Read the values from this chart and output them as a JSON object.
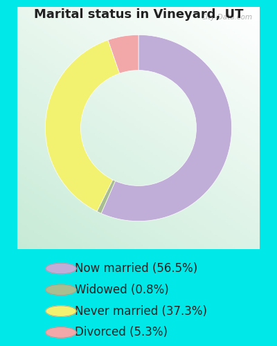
{
  "title": "Marital status in Vineyard, UT",
  "slices": [
    56.5,
    0.8,
    37.3,
    5.3
  ],
  "colors": [
    "#c0aed8",
    "#a8be90",
    "#f2f270",
    "#f2a8a8"
  ],
  "labels": [
    "Now married (56.5%)",
    "Widowed (0.8%)",
    "Never married (37.3%)",
    "Divorced (5.3%)"
  ],
  "legend_colors": [
    "#c0aed8",
    "#a8be90",
    "#f2f270",
    "#f2a8a8"
  ],
  "fig_bg_color": "#00e8e8",
  "chart_bg_color": "#e0f0e8",
  "title_fontsize": 13,
  "legend_fontsize": 12,
  "donut_width": 0.38,
  "start_angle": 90,
  "watermark": "City-Data.com"
}
